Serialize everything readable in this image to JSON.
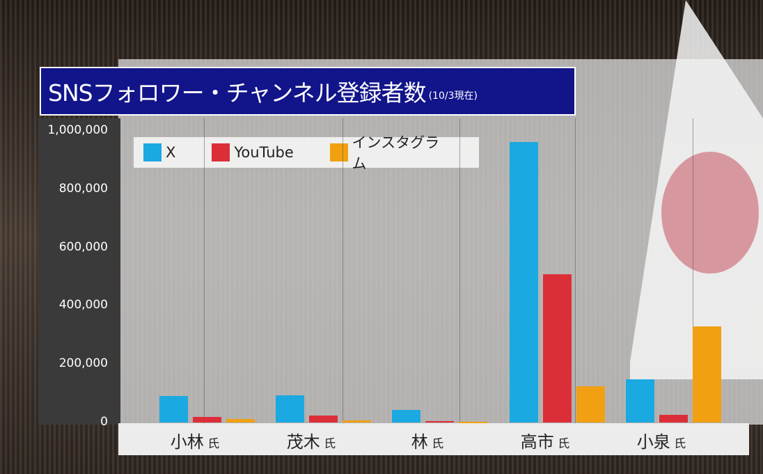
{
  "chart_data": {
    "type": "bar",
    "title": "SNSフォロワー・チャンネル登録者数",
    "subtitle": "(10/3現在)",
    "categories": [
      "小林",
      "茂木",
      "林",
      "高市",
      "小泉"
    ],
    "category_suffix": "氏",
    "series": [
      {
        "name": "X",
        "color": "#1ba9e1",
        "values": [
          91000,
          93000,
          43000,
          962000,
          148000
        ]
      },
      {
        "name": "YouTube",
        "color": "#dc2e38",
        "values": [
          19000,
          24000,
          4000,
          508000,
          26000
        ]
      },
      {
        "name": "インスタグラム",
        "color": "#f0a010",
        "values": [
          12000,
          7000,
          2000,
          124000,
          329000
        ]
      }
    ],
    "ylim": [
      0,
      1000000
    ],
    "yticks": [
      "0",
      "200,000",
      "400,000",
      "600,000",
      "800,000",
      "1,000,000"
    ],
    "legend": "top-left",
    "grid": false
  }
}
